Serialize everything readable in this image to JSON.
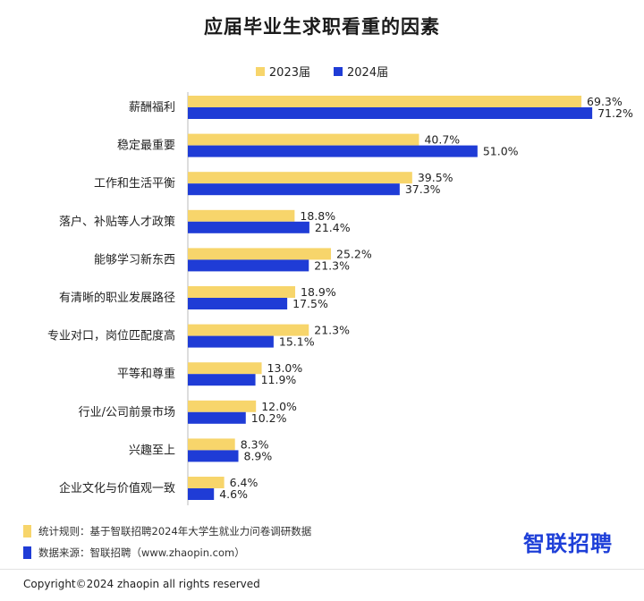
{
  "chart_data": {
    "type": "bar",
    "orientation": "horizontal",
    "title": "应届毕业生求职看重的因素",
    "categories": [
      "薪酬福利",
      "稳定最重要",
      "工作和生活平衡",
      "落户、补贴等人才政策",
      "能够学习新东西",
      "有清晰的职业发展路径",
      "专业对口，岗位匹配度高",
      "平等和尊重",
      "行业/公司前景市场",
      "兴趣至上",
      "企业文化与价值观一致"
    ],
    "series": [
      {
        "name": "2023届",
        "color": "#F7D56B",
        "values": [
          69.3,
          40.7,
          39.5,
          18.8,
          25.2,
          18.9,
          21.3,
          13.0,
          12.0,
          8.3,
          6.4
        ],
        "labels": [
          "69.3%",
          "40.7%",
          "39.5%",
          "18.8%",
          "25.2%",
          "18.9%",
          "21.3%",
          "13.0%",
          "12.0%",
          "8.3%",
          "6.4%"
        ]
      },
      {
        "name": "2024届",
        "color": "#1F3CD6",
        "values": [
          71.2,
          51.0,
          37.3,
          21.4,
          21.3,
          17.5,
          15.1,
          11.9,
          10.2,
          8.9,
          4.6
        ],
        "labels": [
          "71.2%",
          "51.0%",
          "37.3%",
          "21.4%",
          "21.3%",
          "17.5%",
          "15.1%",
          "11.9%",
          "10.2%",
          "8.9%",
          "4.6%"
        ]
      }
    ],
    "legend_position": "top-center",
    "grid": false,
    "xlim": [
      0,
      80
    ]
  },
  "notes": {
    "stats_rule": "统计规则：基于智联招聘2024年大学生就业力问卷调研数据",
    "source": "数据来源：智联招聘（www.zhaopin.com）"
  },
  "logo_text": "智联招聘",
  "copyright": "Copyright©2024 zhaopin all rights reserved"
}
